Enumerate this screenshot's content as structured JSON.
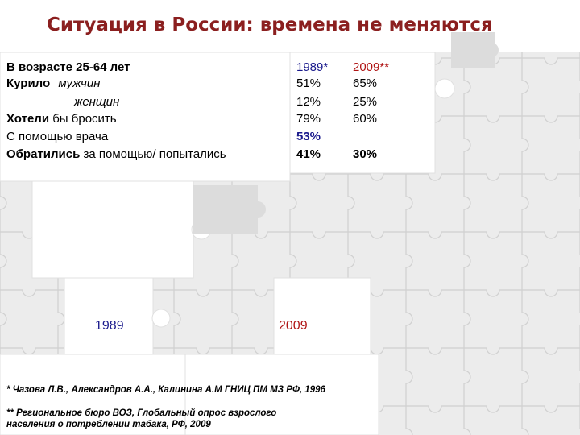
{
  "title": "Ситуация в России: времена не меняются",
  "table": {
    "rows": [
      {
        "label_bold": "В возрасте 25-64 лет",
        "label_rest": "",
        "v1989": "1989*",
        "v2009": "2009**"
      },
      {
        "label_bold": "Курило",
        "label_rest": "мужчин",
        "v1989": "51%",
        "v2009": "65%"
      },
      {
        "label_bold": "",
        "label_rest": "женщин",
        "v1989": "12%",
        "v2009": "25%"
      },
      {
        "label_bold": "Хотели",
        "label_rest": " бы бросить",
        "v1989": "79%",
        "v2009": "60%"
      },
      {
        "label_bold": "",
        "label_rest": "С помощью врача",
        "v1989": "53%",
        "v2009": ""
      },
      {
        "label_bold": "Обратились",
        "label_rest": " за помощью/ попытались",
        "v1989": "41%",
        "v2009": "30%"
      }
    ]
  },
  "image_labels": {
    "left": "1989",
    "right": "2009"
  },
  "footnotes": {
    "f1": "* Чазова Л.В., Александров А.А., Калинина А.М ГНИЦ ПМ МЗ РФ, 1996",
    "f2_line1": "** Региональное бюро ВОЗ, Глобальный опрос взрослого",
    "f2_line2": "населения о потреблении табака, РФ, 2009"
  },
  "colors": {
    "title": "#8b1f1f",
    "blue": "#1a1a8c",
    "red": "#b01515"
  }
}
